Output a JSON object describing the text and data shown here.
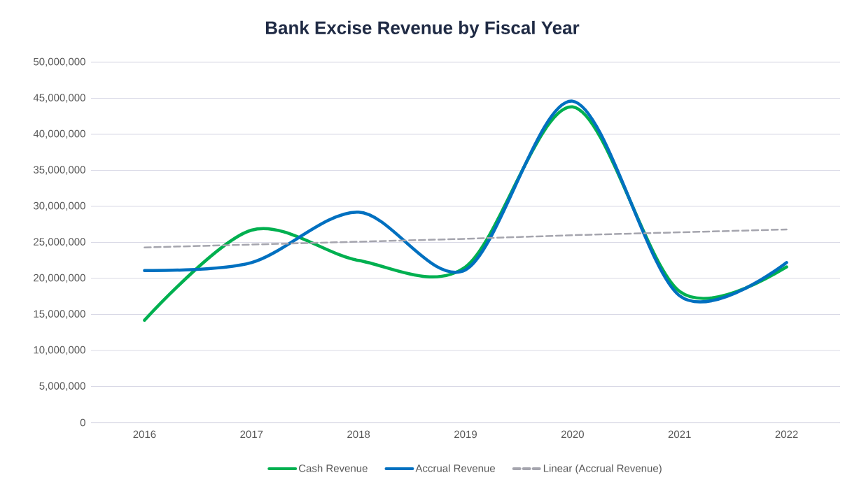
{
  "chart_data": {
    "type": "line",
    "title": "Bank Excise Revenue by Fiscal Year",
    "categories": [
      "2016",
      "2017",
      "2018",
      "2019",
      "2020",
      "2021",
      "2022"
    ],
    "series": [
      {
        "name": "Cash Revenue",
        "color": "#00b050",
        "values": [
          14200000,
          26700000,
          22500000,
          21600000,
          43800000,
          18200000,
          21600000
        ]
      },
      {
        "name": "Accrual Revenue",
        "color": "#0070c0",
        "values": [
          21100000,
          22200000,
          29200000,
          21200000,
          44600000,
          17600000,
          22200000
        ]
      },
      {
        "name": "Linear (Accrual Revenue)",
        "color": "#a5a5ae",
        "line_style": "dashed",
        "values": [
          24300000,
          24700000,
          25100000,
          25500000,
          26000000,
          26400000,
          26800000
        ]
      }
    ],
    "ylim": [
      0,
      50000000
    ],
    "yticks": [
      0,
      {
        "value": 5000000,
        "label": "5,000,000"
      },
      {
        "value": 10000000,
        "label": "10,000,000"
      },
      {
        "value": 15000000,
        "label": "15,000,000"
      },
      {
        "value": 20000000,
        "label": "20,000,000"
      },
      {
        "value": 25000000,
        "label": "25,000,000"
      },
      {
        "value": 30000000,
        "label": "30,000,000"
      },
      {
        "value": 35000000,
        "label": "35,000,000"
      },
      {
        "value": 40000000,
        "label": "40,000,000"
      },
      {
        "value": 45000000,
        "label": "45,000,000"
      },
      {
        "value": 50000000,
        "label": "50,000,000"
      }
    ],
    "grid": "y",
    "legend": "bottom",
    "marker": "none",
    "line_style": "solid"
  }
}
